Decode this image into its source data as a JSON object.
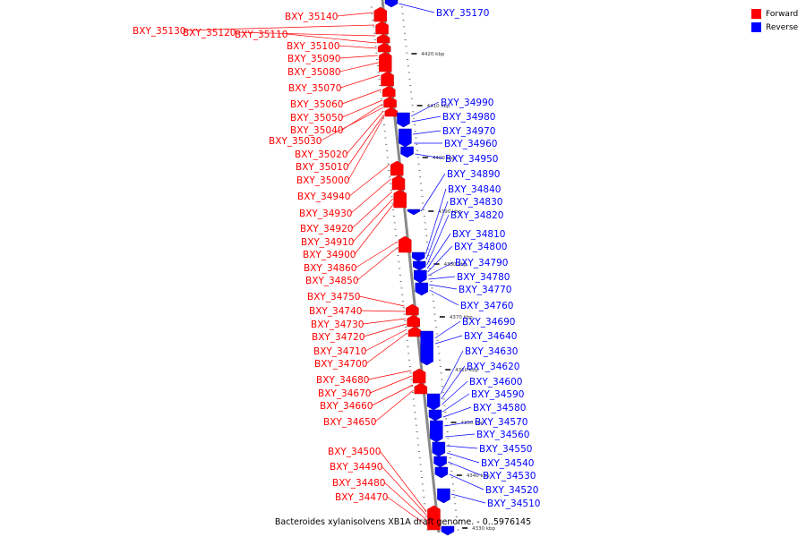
{
  "legend": [
    {
      "label": "Forward",
      "color": "#ff0000"
    },
    {
      "label": "Reverse",
      "color": "#0000ff"
    }
  ],
  "caption": "Bacteroides xylanisolvens XB1A draft genome. - 0..5976145",
  "colors": {
    "forward": "#ff0000",
    "reverse": "#0000ff",
    "backbone": "#888888",
    "tick": "#000000"
  },
  "ticks": [
    "4420 kbp",
    "4410 kbp",
    "4400 kbp",
    "4390 kbp",
    "4380 kbp",
    "4370 kbp",
    "4360 kbp",
    "4350 kbp",
    "4340 kbp",
    "4330 kbp"
  ],
  "forward_genes": [
    "BXY_35140",
    "BXY_35130",
    "BXY_35120",
    "BXY_35110",
    "BXY_35100",
    "BXY_35090",
    "BXY_35080",
    "BXY_35070",
    "BXY_35060",
    "BXY_35050",
    "BXY_35040",
    "BXY_35030",
    "BXY_35020",
    "BXY_35010",
    "BXY_35000",
    "BXY_34940",
    "BXY_34930",
    "BXY_34920",
    "BXY_34910",
    "BXY_34900",
    "BXY_34860",
    "BXY_34850",
    "BXY_34750",
    "BXY_34740",
    "BXY_34730",
    "BXY_34720",
    "BXY_34710",
    "BXY_34700",
    "BXY_34680",
    "BXY_34670",
    "BXY_34660",
    "BXY_34650",
    "BXY_34500",
    "BXY_34490",
    "BXY_34480",
    "BXY_34470"
  ],
  "reverse_genes": [
    "BXY_35170",
    "BXY_34990",
    "BXY_34980",
    "BXY_34970",
    "BXY_34960",
    "BXY_34950",
    "BXY_34890",
    "BXY_34840",
    "BXY_34830",
    "BXY_34820",
    "BXY_34810",
    "BXY_34800",
    "BXY_34790",
    "BXY_34780",
    "BXY_34770",
    "BXY_34760",
    "BXY_34690",
    "BXY_34640",
    "BXY_34630",
    "BXY_34620",
    "BXY_34600",
    "BXY_34590",
    "BXY_34580",
    "BXY_34570",
    "BXY_34560",
    "BXY_34550",
    "BXY_34540",
    "BXY_34530",
    "BXY_34520",
    "BXY_34510"
  ]
}
